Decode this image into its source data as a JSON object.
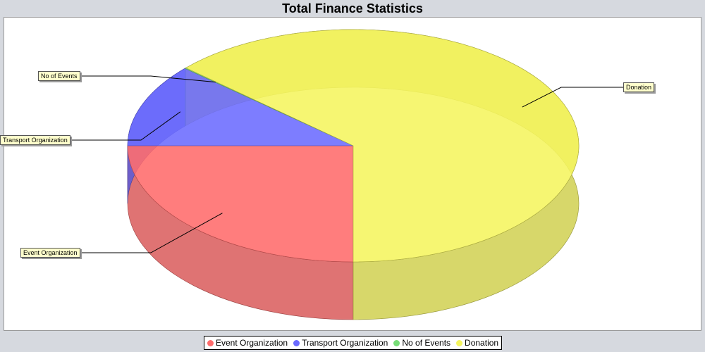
{
  "chart_data": {
    "type": "pie",
    "title": "Total Finance Statistics",
    "categories": [
      "Event Organization",
      "Transport Organization",
      "No of Events",
      "Donation"
    ],
    "values": [
      25,
      11.6,
      0.1,
      63.3
    ],
    "colors": [
      "#ff6b6b",
      "#6b6bff",
      "#77dd77",
      "#f5f55e"
    ],
    "legend_position": "bottom",
    "labels_style": "callouts"
  }
}
